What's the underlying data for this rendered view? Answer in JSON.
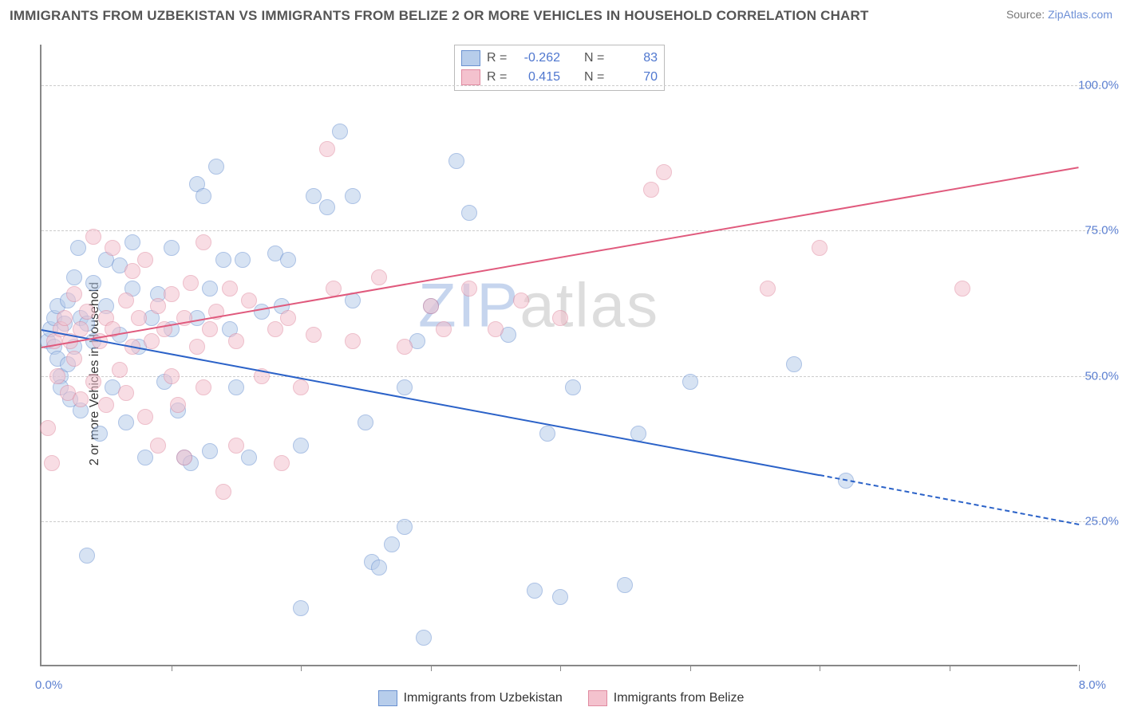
{
  "title": "IMMIGRANTS FROM UZBEKISTAN VS IMMIGRANTS FROM BELIZE 2 OR MORE VEHICLES IN HOUSEHOLD CORRELATION CHART",
  "source_label": "Source:",
  "source_name": "ZipAtlas.com",
  "ylabel": "2 or more Vehicles in Household",
  "watermark_1": "ZIP",
  "watermark_2": "atlas",
  "chart": {
    "type": "scatter",
    "xlim": [
      0.0,
      8.0
    ],
    "ylim": [
      0.0,
      107.0
    ],
    "yticks": [
      25.0,
      50.0,
      75.0,
      100.0
    ],
    "ytick_labels": [
      "25.0%",
      "50.0%",
      "75.0%",
      "100.0%"
    ],
    "xtick_positions": [
      1,
      2,
      3,
      4,
      5,
      6,
      7,
      8
    ],
    "xlim_labels": [
      "0.0%",
      "8.0%"
    ],
    "xlim_label_color": "#5b7fd0",
    "grid_color": "#cccccc",
    "axis_color": "#888888",
    "background_color": "#ffffff",
    "marker_radius": 10,
    "marker_border_width": 1.4,
    "series": [
      {
        "name": "Immigrants from Uzbekistan",
        "fill": "#b7cdeb",
        "stroke": "#6a91d0",
        "fill_opacity": 0.55,
        "R": "-0.262",
        "N": "83",
        "trend": {
          "x1": 0.0,
          "y1": 58.0,
          "x2": 6.0,
          "y2": 33.0,
          "ext_x2": 8.0,
          "ext_y2": 24.5,
          "color": "#2b62c8",
          "width": 2.2,
          "dash_ext": "5,5"
        },
        "points": [
          [
            0.05,
            56
          ],
          [
            0.07,
            58
          ],
          [
            0.1,
            55
          ],
          [
            0.1,
            60
          ],
          [
            0.12,
            53
          ],
          [
            0.12,
            62
          ],
          [
            0.15,
            50
          ],
          [
            0.15,
            48
          ],
          [
            0.18,
            59
          ],
          [
            0.2,
            63
          ],
          [
            0.2,
            52
          ],
          [
            0.22,
            46
          ],
          [
            0.25,
            67
          ],
          [
            0.25,
            55
          ],
          [
            0.28,
            72
          ],
          [
            0.3,
            60
          ],
          [
            0.3,
            44
          ],
          [
            0.35,
            19
          ],
          [
            0.35,
            59
          ],
          [
            0.4,
            66
          ],
          [
            0.4,
            56
          ],
          [
            0.45,
            40
          ],
          [
            0.5,
            70
          ],
          [
            0.5,
            62
          ],
          [
            0.55,
            48
          ],
          [
            0.6,
            69
          ],
          [
            0.6,
            57
          ],
          [
            0.65,
            42
          ],
          [
            0.7,
            65
          ],
          [
            0.7,
            73
          ],
          [
            0.75,
            55
          ],
          [
            0.8,
            36
          ],
          [
            0.85,
            60
          ],
          [
            0.9,
            64
          ],
          [
            0.95,
            49
          ],
          [
            1.0,
            72
          ],
          [
            1.0,
            58
          ],
          [
            1.05,
            44
          ],
          [
            1.1,
            36
          ],
          [
            1.15,
            35
          ],
          [
            1.2,
            83
          ],
          [
            1.2,
            60
          ],
          [
            1.25,
            81
          ],
          [
            1.3,
            65
          ],
          [
            1.3,
            37
          ],
          [
            1.35,
            86
          ],
          [
            1.4,
            70
          ],
          [
            1.45,
            58
          ],
          [
            1.5,
            48
          ],
          [
            1.55,
            70
          ],
          [
            1.6,
            36
          ],
          [
            1.7,
            61
          ],
          [
            1.8,
            71
          ],
          [
            1.85,
            62
          ],
          [
            1.9,
            70
          ],
          [
            2.0,
            10
          ],
          [
            2.0,
            38
          ],
          [
            2.1,
            81
          ],
          [
            2.2,
            79
          ],
          [
            2.3,
            92
          ],
          [
            2.4,
            81
          ],
          [
            2.4,
            63
          ],
          [
            2.5,
            42
          ],
          [
            2.55,
            18
          ],
          [
            2.6,
            17
          ],
          [
            2.7,
            21
          ],
          [
            2.8,
            48
          ],
          [
            2.8,
            24
          ],
          [
            2.9,
            56
          ],
          [
            2.95,
            5
          ],
          [
            3.0,
            62
          ],
          [
            3.2,
            87
          ],
          [
            3.3,
            78
          ],
          [
            3.6,
            57
          ],
          [
            3.8,
            13
          ],
          [
            3.9,
            40
          ],
          [
            4.0,
            12
          ],
          [
            4.1,
            48
          ],
          [
            4.5,
            14
          ],
          [
            4.6,
            40
          ],
          [
            5.0,
            49
          ],
          [
            5.8,
            52
          ],
          [
            6.2,
            32
          ]
        ]
      },
      {
        "name": "Immigrants from Belize",
        "fill": "#f4c2ce",
        "stroke": "#e08aa0",
        "fill_opacity": 0.55,
        "R": "0.415",
        "N": "70",
        "trend": {
          "x1": 0.0,
          "y1": 55.0,
          "x2": 8.0,
          "y2": 86.0,
          "color": "#e05a7d",
          "width": 2.2
        },
        "points": [
          [
            0.05,
            41
          ],
          [
            0.08,
            35
          ],
          [
            0.1,
            56
          ],
          [
            0.12,
            50
          ],
          [
            0.15,
            58
          ],
          [
            0.18,
            60
          ],
          [
            0.2,
            47
          ],
          [
            0.22,
            56
          ],
          [
            0.25,
            64
          ],
          [
            0.25,
            53
          ],
          [
            0.3,
            58
          ],
          [
            0.3,
            46
          ],
          [
            0.35,
            61
          ],
          [
            0.4,
            49
          ],
          [
            0.4,
            74
          ],
          [
            0.45,
            56
          ],
          [
            0.5,
            60
          ],
          [
            0.5,
            45
          ],
          [
            0.55,
            72
          ],
          [
            0.55,
            58
          ],
          [
            0.6,
            51
          ],
          [
            0.65,
            63
          ],
          [
            0.65,
            47
          ],
          [
            0.7,
            68
          ],
          [
            0.7,
            55
          ],
          [
            0.75,
            60
          ],
          [
            0.8,
            70
          ],
          [
            0.8,
            43
          ],
          [
            0.85,
            56
          ],
          [
            0.9,
            62
          ],
          [
            0.9,
            38
          ],
          [
            0.95,
            58
          ],
          [
            1.0,
            64
          ],
          [
            1.0,
            50
          ],
          [
            1.05,
            45
          ],
          [
            1.1,
            60
          ],
          [
            1.1,
            36
          ],
          [
            1.15,
            66
          ],
          [
            1.2,
            55
          ],
          [
            1.25,
            73
          ],
          [
            1.25,
            48
          ],
          [
            1.3,
            58
          ],
          [
            1.35,
            61
          ],
          [
            1.4,
            30
          ],
          [
            1.45,
            65
          ],
          [
            1.5,
            56
          ],
          [
            1.5,
            38
          ],
          [
            1.6,
            63
          ],
          [
            1.7,
            50
          ],
          [
            1.8,
            58
          ],
          [
            1.85,
            35
          ],
          [
            1.9,
            60
          ],
          [
            2.0,
            48
          ],
          [
            2.1,
            57
          ],
          [
            2.2,
            89
          ],
          [
            2.25,
            65
          ],
          [
            2.4,
            56
          ],
          [
            2.6,
            67
          ],
          [
            2.8,
            55
          ],
          [
            3.0,
            62
          ],
          [
            3.1,
            58
          ],
          [
            3.3,
            65
          ],
          [
            3.5,
            58
          ],
          [
            3.7,
            63
          ],
          [
            4.0,
            60
          ],
          [
            4.7,
            82
          ],
          [
            4.8,
            85
          ],
          [
            5.6,
            65
          ],
          [
            7.1,
            65
          ],
          [
            6.0,
            72
          ]
        ]
      }
    ]
  },
  "stat_box": {
    "rows": [
      {
        "swatch_fill": "#b7cdeb",
        "swatch_stroke": "#6a91d0",
        "R_label": "R =",
        "R": "-0.262",
        "N_label": "N =",
        "N": "83"
      },
      {
        "swatch_fill": "#f4c2ce",
        "swatch_stroke": "#e08aa0",
        "R_label": "R =",
        "R": "0.415",
        "N_label": "N =",
        "N": "70"
      }
    ],
    "label_color": "#555555",
    "value_color": "#4f77cf"
  },
  "bottom_legend": [
    {
      "swatch_fill": "#b7cdeb",
      "swatch_stroke": "#6a91d0",
      "label": "Immigrants from Uzbekistan"
    },
    {
      "swatch_fill": "#f4c2ce",
      "swatch_stroke": "#e08aa0",
      "label": "Immigrants from Belize"
    }
  ]
}
